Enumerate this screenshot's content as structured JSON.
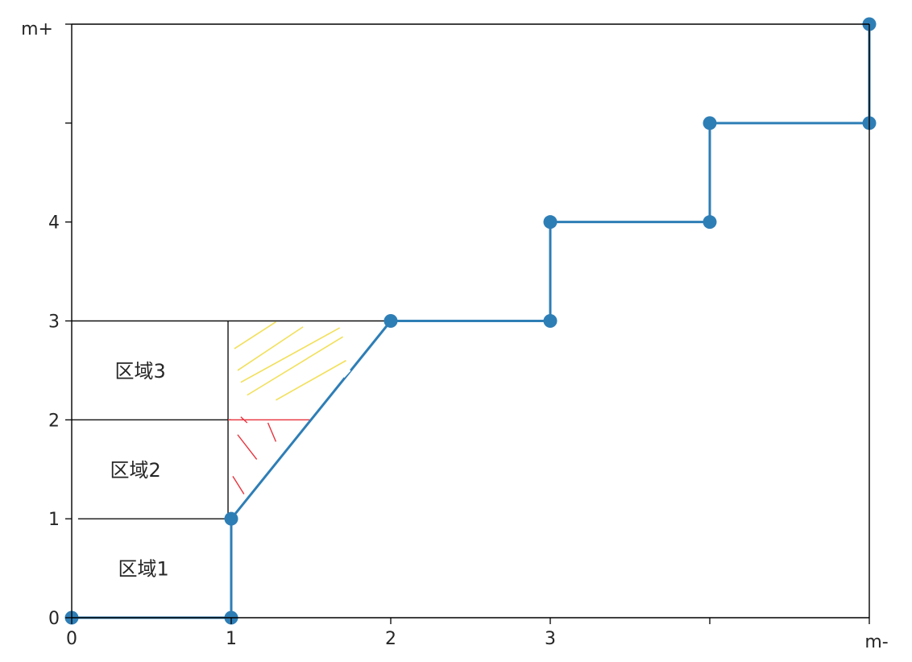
{
  "chart_data": {
    "type": "line",
    "step": true,
    "xlabel": "m-",
    "ylabel": "m+",
    "xlim": [
      0,
      5
    ],
    "ylim": [
      0,
      6
    ],
    "x_ticks": [
      0,
      1,
      2,
      3,
      4,
      5
    ],
    "x_tick_labels": [
      "0",
      "1",
      "2",
      "3",
      "",
      ""
    ],
    "y_ticks": [
      0,
      1,
      2,
      3,
      4,
      5,
      6
    ],
    "y_tick_labels": [
      "0",
      "1",
      "2",
      "3",
      "4",
      "",
      ""
    ],
    "grid": false,
    "series": [
      {
        "color": "#2e7eb6",
        "points": [
          [
            0,
            0
          ],
          [
            1,
            0
          ],
          [
            1,
            1
          ],
          [
            2,
            3
          ],
          [
            3,
            3
          ],
          [
            3,
            4
          ],
          [
            4,
            4
          ],
          [
            4,
            5
          ],
          [
            5,
            5
          ],
          [
            5,
            6
          ]
        ]
      }
    ],
    "annotations": {
      "region_labels": [
        {
          "text": "区域1",
          "x": 0.45,
          "y": 0.5
        },
        {
          "text": "区域2",
          "x": 0.4,
          "y": 1.5
        },
        {
          "text": "区域3",
          "x": 0.43,
          "y": 2.5
        }
      ],
      "horizontal_lines": [
        {
          "y": 1,
          "x0": 0.04,
          "x1": 1
        },
        {
          "y": 2,
          "x0": 0,
          "x1": 1
        },
        {
          "y": 3,
          "x0": 0,
          "x1": 2
        }
      ],
      "vertical_lines": [
        {
          "x": 0.98,
          "y0": 1,
          "y1": 3
        }
      ],
      "red_line": {
        "y": 2,
        "x0": 0.98,
        "x1": 1.5,
        "color": "#e8323c"
      },
      "red_hatch_color": "#e8323c",
      "yellow_hatch_color": "#f2e05a"
    }
  }
}
